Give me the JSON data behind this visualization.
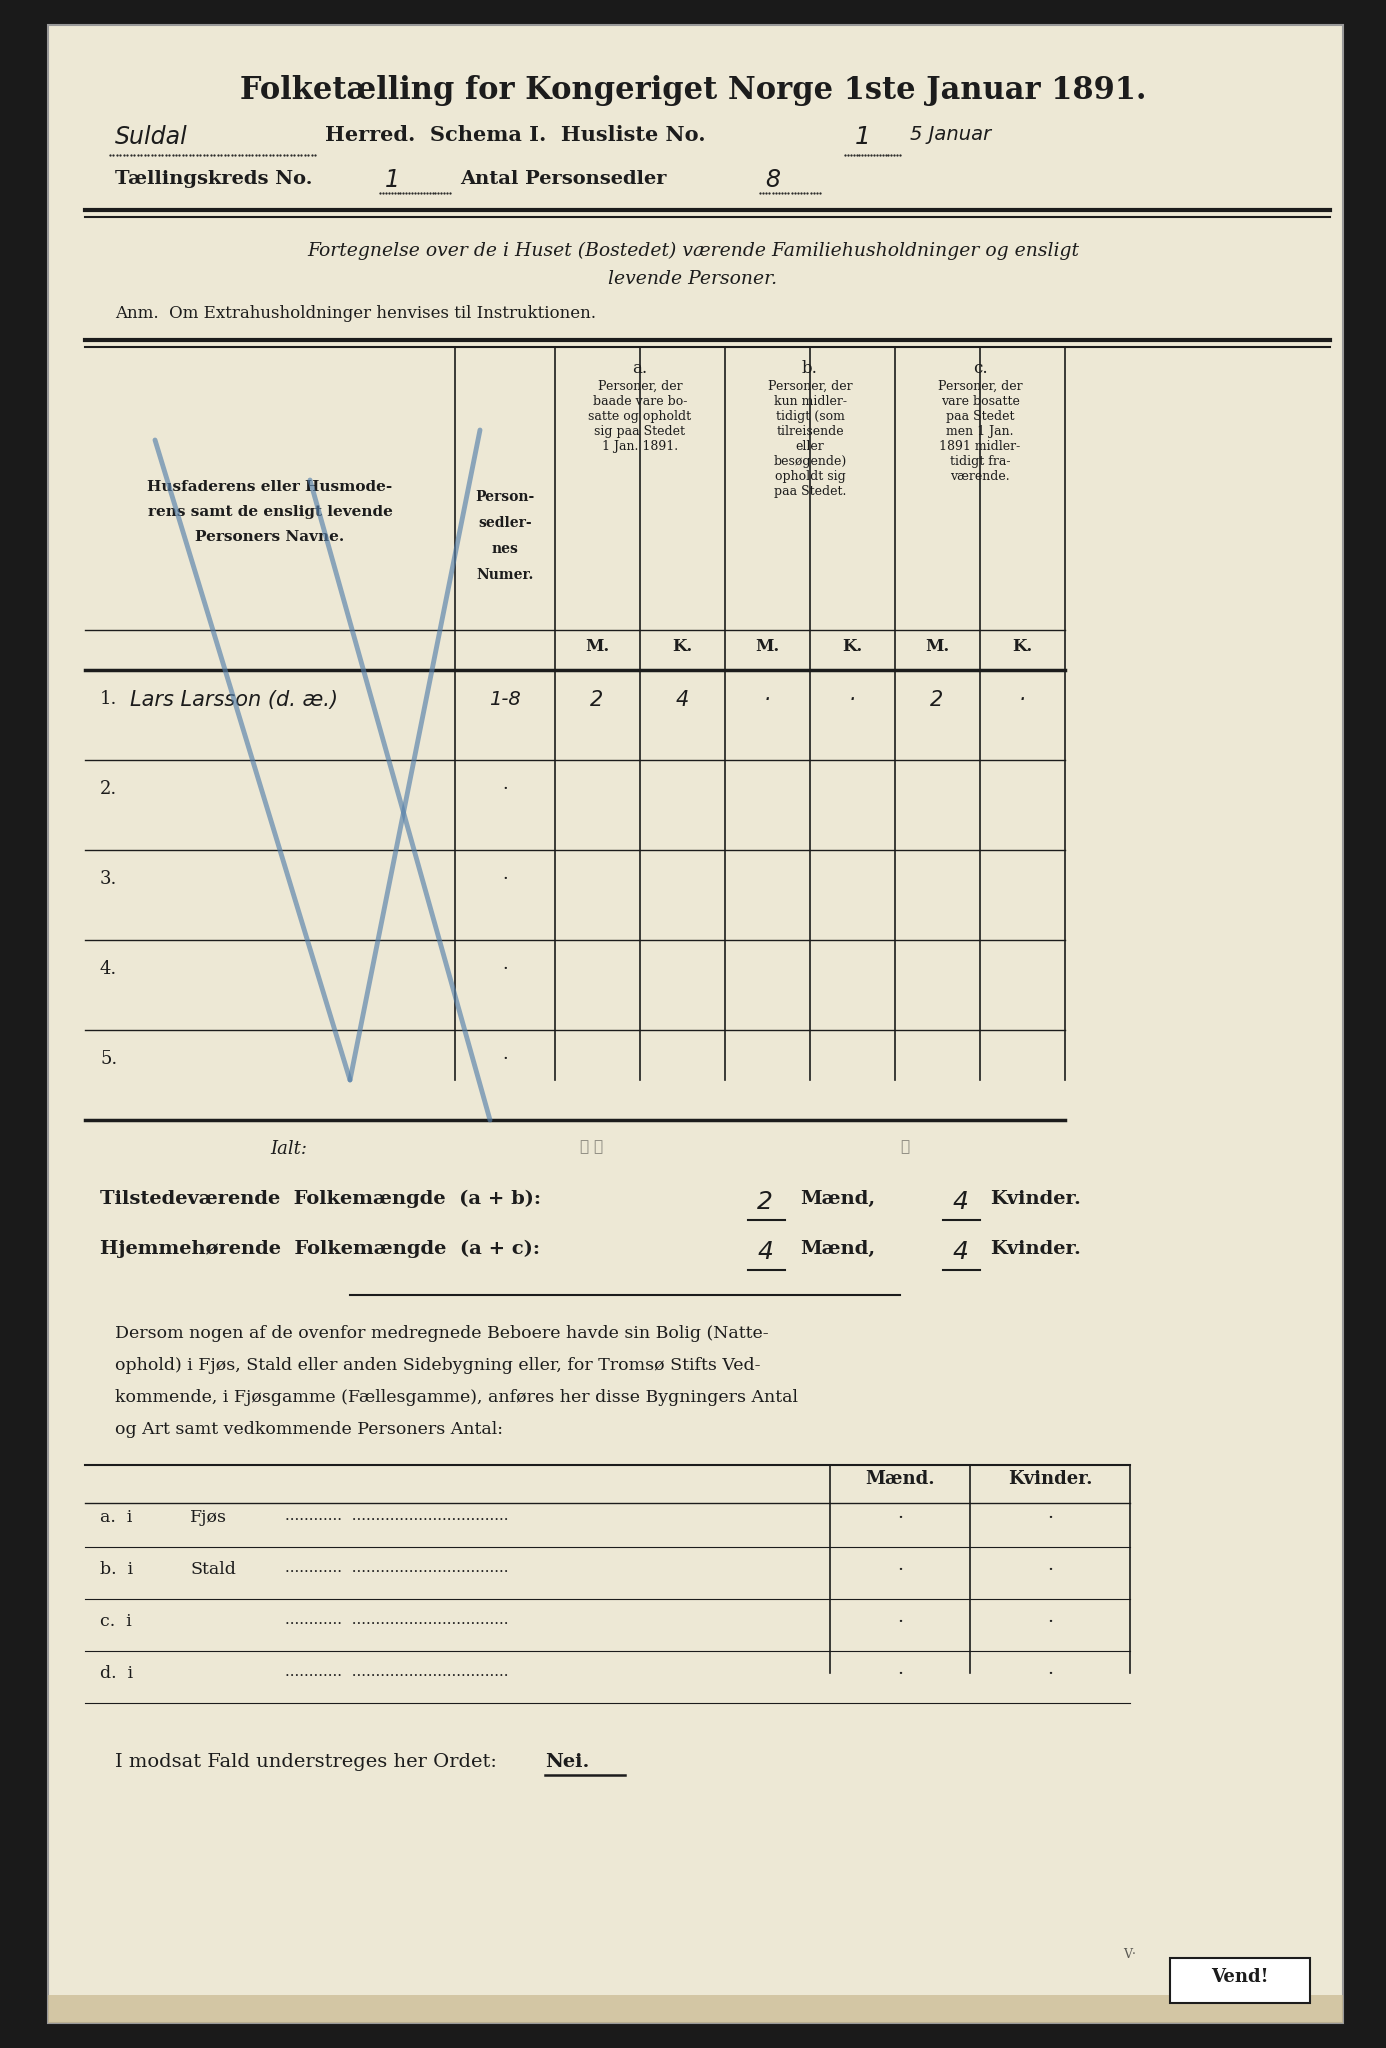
{
  "bg_color": "#1a1a1a",
  "paper_color": "#ede8d5",
  "paper_edge": "#999999",
  "dark_color": "#1c1c1c",
  "blue_color": "#5580aa",
  "title": "Folketælling for Kongeriget Norge 1ste Januar 1891.",
  "line2_handwritten": "Suldal",
  "line2_printed": "Herred.  Schema I.  Husliste No.",
  "line2_hw2": "1",
  "line2_hw3": "5 Januar",
  "line3_printed": "Tællingskreds No.",
  "line3_hw1": "1",
  "line3_printed2": "Antal Personsedler",
  "line3_hw2": "8",
  "italic_line1": "Fortegnelse over de i Huset (Bostedet) værende Familiehusholdninger og ensligt",
  "italic_line2": "levende Personer.",
  "anm_line": "Anm.  Om Extrahusholdninger henvises til Instruktionen.",
  "col_header_a": "a.",
  "col_header_a_text": "Personer, der\nbaade vare bo-\nsatte og opholdt\nsig paa Stedet\n1 Jan. 1891.",
  "col_header_b": "b.",
  "col_header_b_text": "Personer, der\nkun midler-\ntidigt (som\ntilreisende\neller\nbesøgende)\nopholdt sig\npaa Stedet.",
  "col_header_c": "c.",
  "col_header_c_text": "Personer, der\nvare bosatte\npaa Stedet\nmen 1 Jan.\n1891 midler-\ntidigt fra-\nværende.",
  "col_header_name1": "Husfaderens eller Husmode-",
  "col_header_name2": "rens samt de ensligt levende",
  "col_header_name3": "Personers Navne.",
  "col_header_pers1": "Person-",
  "col_header_pers2": "sedler-",
  "col_header_pers3": "nes",
  "col_header_pers4": "Numer.",
  "row1_name": "Lars Larsson (d. æ.)",
  "row1_num": "1-8",
  "row1_aM": "2",
  "row1_aK": "4",
  "row1_bM": "·",
  "row1_bK": "·",
  "row1_cM": "2",
  "row1_cK": "·",
  "summary_ialt": "Ialt:",
  "summary_tilstede": "Tilstedeværende  Folkemængde  (a + b):",
  "summary_tilstede_m": "2",
  "summary_tilstede_mword": "Mænd,",
  "summary_tilstede_k": "4",
  "summary_tilstede_kword": "Kvinder.",
  "summary_hjemme": "Hjemmehørende  Folkemængde  (a + c):",
  "summary_hjemme_m": "4",
  "summary_hjemme_mword": "Mænd,",
  "summary_hjemme_k": "4",
  "summary_hjemme_kword": "Kvinder.",
  "body_text1": "Dersom nogen af de ovenfor medregnede Beboere havde sin Bolig (Natte-",
  "body_text2": "ophold) i Fjøs, Stald eller anden Sidebygning eller, for Tromsø Stifts Ved-",
  "body_text3": "kommende, i Fjøsgamme (Fællesgamme), anføres her disse Bygningers Antal",
  "body_text4": "og Art samt vedkommende Personers Antal:",
  "lower_col1": "Mænd.",
  "lower_col2": "Kvinder.",
  "row_a_label": "a.  i",
  "row_a_text": "Fjøs",
  "row_b_label": "b.  i",
  "row_b_text": "Stald",
  "row_c_label": "c.  i",
  "row_d_label": "d.  i",
  "final_text1": "I modsat Fald understreges her Ordet:  ",
  "final_nei": "Nei.",
  "vend_text": "Vend!"
}
